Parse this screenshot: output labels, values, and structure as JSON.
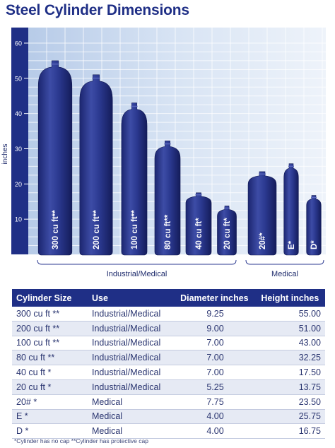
{
  "title": "Steel Cylinder Dimensions",
  "chart_data": {
    "type": "bar",
    "ylabel": "inches",
    "ylim": [
      0,
      60
    ],
    "yticks": [
      10,
      20,
      30,
      40,
      50,
      60
    ],
    "grid": true,
    "categories": [
      "300 cu ft**",
      "200 cu ft**",
      "100 cu ft**",
      "80 cu ft**",
      "40 cu ft*",
      "20 cu ft*",
      "20#*",
      "E*",
      "D*"
    ],
    "values": [
      55.0,
      51.0,
      43.0,
      32.25,
      17.5,
      13.75,
      23.5,
      25.75,
      16.75
    ],
    "diameters": [
      9.25,
      9.0,
      7.0,
      7.0,
      7.0,
      5.25,
      7.75,
      4.0,
      4.0
    ],
    "groups": [
      {
        "label": "Industrial/Medical",
        "categories": [
          "300 cu ft**",
          "200 cu ft**",
          "100 cu ft**",
          "80 cu ft**",
          "40 cu ft*",
          "20 cu ft*"
        ]
      },
      {
        "label": "Medical",
        "categories": [
          "20#*",
          "E*",
          "D*"
        ]
      }
    ],
    "colors": {
      "cylinder": "#2b3990",
      "plot_bg": "#c5d6ee",
      "axis_bar": "#1f2f86"
    }
  },
  "table": {
    "headers": [
      "Cylinder Size",
      "Use",
      "Diameter inches",
      "Height inches"
    ],
    "rows": [
      [
        "300 cu ft **",
        "Industrial/Medical",
        "9.25",
        "55.00"
      ],
      [
        "200 cu ft **",
        "Industrial/Medical",
        "9.00",
        "51.00"
      ],
      [
        "100 cu ft **",
        "Industrial/Medical",
        "7.00",
        "43.00"
      ],
      [
        "80 cu ft **",
        "Industrial/Medical",
        "7.00",
        "32.25"
      ],
      [
        "40 cu ft *",
        "Industrial/Medical",
        "7.00",
        "17.50"
      ],
      [
        "20 cu ft *",
        "Industrial/Medical",
        "5.25",
        "13.75"
      ],
      [
        "20# *",
        "Medical",
        "7.75",
        "23.50"
      ],
      [
        "E *",
        "Medical",
        "4.00",
        "25.75"
      ],
      [
        "D *",
        "Medical",
        "4.00",
        "16.75"
      ]
    ]
  },
  "footnote": "*Cylinder has no cap   **Cylinder has protective cap"
}
